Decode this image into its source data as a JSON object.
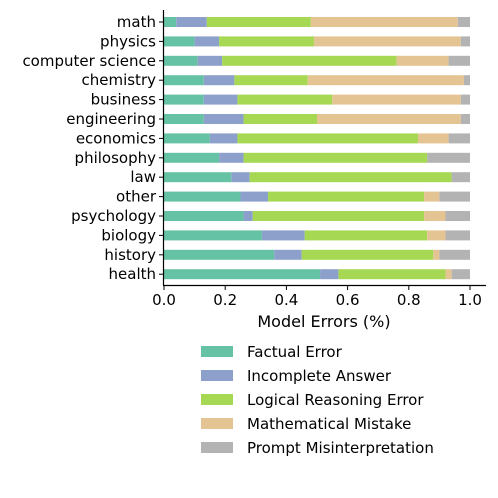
{
  "chart_data": {
    "type": "bar",
    "orientation": "horizontal",
    "stacked": true,
    "categories": [
      "math",
      "physics",
      "computer science",
      "chemistry",
      "business",
      "engineering",
      "economics",
      "philosophy",
      "law",
      "other",
      "psychology",
      "biology",
      "history",
      "health"
    ],
    "series": [
      {
        "name": "Factual Error",
        "color": "#66c2a5",
        "values": [
          0.04,
          0.1,
          0.11,
          0.13,
          0.13,
          0.13,
          0.15,
          0.18,
          0.22,
          0.25,
          0.26,
          0.32,
          0.36,
          0.51
        ]
      },
      {
        "name": "Incomplete Answer",
        "color": "#8da0cb",
        "values": [
          0.1,
          0.08,
          0.08,
          0.1,
          0.11,
          0.13,
          0.09,
          0.08,
          0.06,
          0.09,
          0.03,
          0.14,
          0.09,
          0.06
        ]
      },
      {
        "name": "Logical Reasoning Error",
        "color": "#a6d854",
        "values": [
          0.34,
          0.31,
          0.57,
          0.24,
          0.31,
          0.24,
          0.59,
          0.6,
          0.66,
          0.51,
          0.56,
          0.4,
          0.43,
          0.35
        ]
      },
      {
        "name": "Mathematical Mistake",
        "color": "#e5c494",
        "values": [
          0.48,
          0.48,
          0.17,
          0.51,
          0.42,
          0.47,
          0.1,
          0.0,
          0.0,
          0.05,
          0.07,
          0.06,
          0.02,
          0.02
        ]
      },
      {
        "name": "Prompt Misinterpretation",
        "color": "#b3b3b3",
        "values": [
          0.04,
          0.03,
          0.07,
          0.02,
          0.03,
          0.03,
          0.07,
          0.14,
          0.06,
          0.1,
          0.08,
          0.08,
          0.1,
          0.06
        ]
      }
    ],
    "xlabel": "Model Errors (%)",
    "ylabel": "",
    "xlim": [
      0,
      1.05
    ],
    "xticks": [
      "0.0",
      "0.2",
      "0.4",
      "0.6",
      "0.8",
      "1.0"
    ],
    "grid": false,
    "legend": "below"
  }
}
